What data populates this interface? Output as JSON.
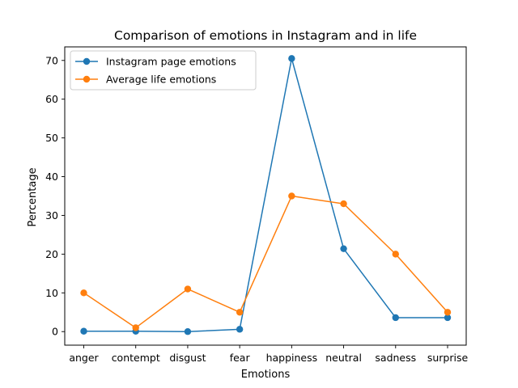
{
  "chart_data": {
    "type": "line",
    "title": "Comparison of emotions in Instagram and in life",
    "xlabel": "Emotions",
    "ylabel": "Percentage",
    "categories": [
      "anger",
      "contempt",
      "disgust",
      "fear",
      "happiness",
      "neutral",
      "sadness",
      "surprise"
    ],
    "ylim": [
      -3.5,
      73.5
    ],
    "yticks": [
      0,
      10,
      20,
      30,
      40,
      50,
      60,
      70
    ],
    "grid": false,
    "legend_position": "top-left",
    "series": [
      {
        "name": "Instagram page emotions",
        "color": "#1f77b4",
        "marker": "circle",
        "values": [
          0.1,
          0.1,
          0.0,
          0.6,
          70.5,
          21.4,
          3.6,
          3.6
        ]
      },
      {
        "name": "Average life emotions",
        "color": "#ff7f0e",
        "marker": "circle",
        "values": [
          10,
          1,
          11,
          5,
          35,
          33,
          20,
          5
        ]
      }
    ]
  }
}
